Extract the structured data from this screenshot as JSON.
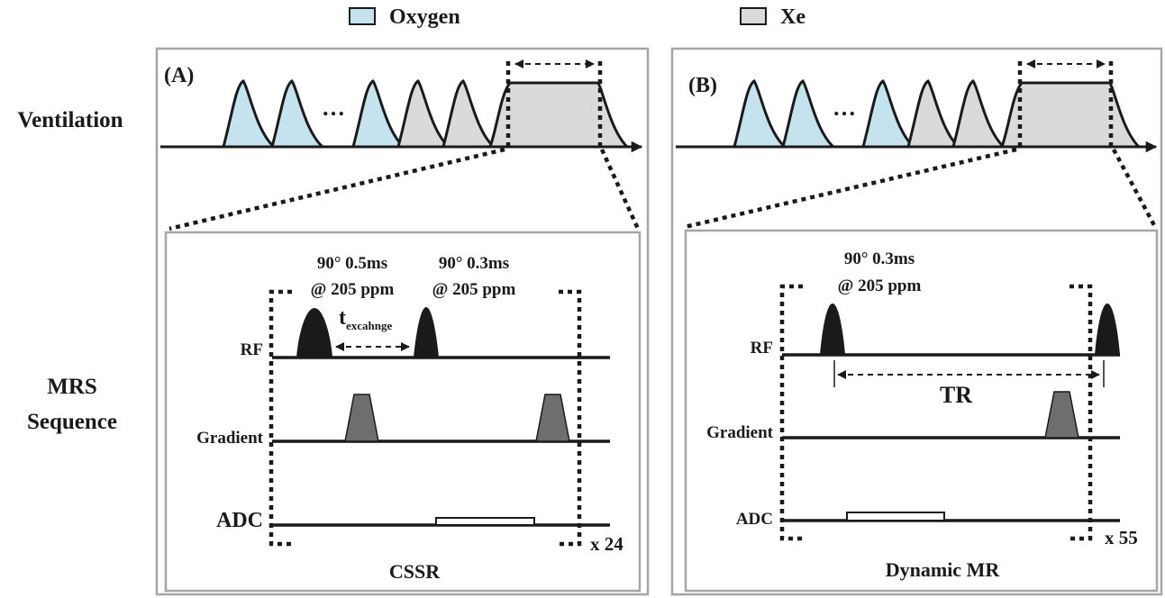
{
  "legend": {
    "oxygen_label": "Oxygen",
    "oxygen_color": "#c5e3ef",
    "xe_label": "Xe",
    "xe_color": "#dadada"
  },
  "row_labels": {
    "ventilation": "Ventilation",
    "mrs_line1": "MRS",
    "mrs_line2": "Sequence"
  },
  "panel_a": {
    "tag": "(A)",
    "ellipsis": "…",
    "pulse1_line1": "90° 0.5ms",
    "pulse1_line2": "@ 205 ppm",
    "pulse2_line1": "90° 0.3ms",
    "pulse2_line2": "@ 205 ppm",
    "t_main": "t",
    "t_sub": "excahnge",
    "rf_label": "RF",
    "gradient_label": "Gradient",
    "adc_label": "ADC",
    "repeat_label": "x 24",
    "caption": "CSSR"
  },
  "panel_b": {
    "tag": "(B)",
    "ellipsis": "…",
    "pulse_line1": "90° 0.3ms",
    "pulse_line2": "@ 205 ppm",
    "tr_label": "TR",
    "rf_label": "RF",
    "gradient_label": "Gradient",
    "adc_label": "ADC",
    "repeat_label": "x 55",
    "caption": "Dynamic MR"
  },
  "colors": {
    "oxygen_fill": "#c5e3ef",
    "xe_fill": "#dadada",
    "rf_pulse": "#1a1a1a",
    "gradient_fill": "#6e6e6e",
    "panel_border": "#a6a6a6"
  }
}
